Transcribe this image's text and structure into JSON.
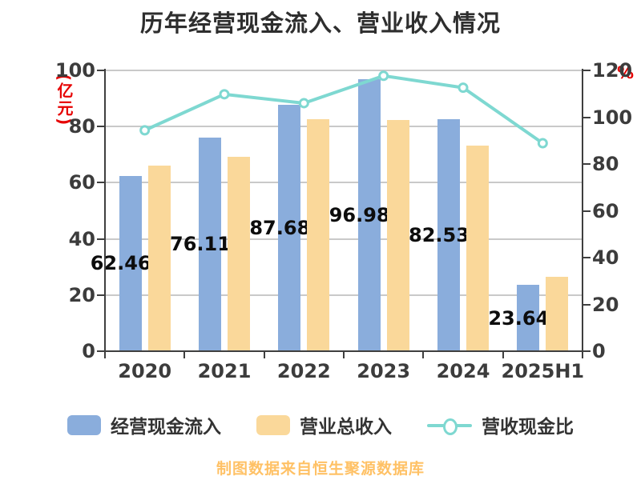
{
  "title": "历年经营现金流入、营业收入情况",
  "footer": "制图数据来自恒生聚源数据库",
  "left_axis": {
    "unit": "(亿元)",
    "ticks": [
      0,
      20,
      40,
      60,
      80,
      100
    ],
    "max": 100,
    "color": "#e60000"
  },
  "right_axis": {
    "unit": "%",
    "ticks": [
      0,
      20,
      40,
      60,
      80,
      100,
      120
    ],
    "max": 120,
    "color": "#e60000"
  },
  "legend": [
    {
      "label": "经营现金流入",
      "type": "bar",
      "color": "#8aaddc"
    },
    {
      "label": "营业总收入",
      "type": "bar",
      "color": "#fad89a"
    },
    {
      "label": "营收现金比",
      "type": "line",
      "color": "#7ed8d1"
    }
  ],
  "chart_data": {
    "type": "bar",
    "subtype": "grouped-bars-with-line",
    "title": "历年经营现金流入、营业收入情况",
    "categories": [
      "2020",
      "2021",
      "2022",
      "2023",
      "2024",
      "2025H1"
    ],
    "series": [
      {
        "name": "经营现金流入",
        "type": "bar",
        "axis": "left",
        "color": "#8aaddc",
        "values": [
          62.46,
          76.11,
          87.68,
          96.98,
          82.53,
          23.64
        ],
        "data_labels": [
          "62.46亿",
          "76.11亿",
          "87.68亿",
          "96.98亿",
          "82.53亿",
          "23.64亿"
        ]
      },
      {
        "name": "营业总收入",
        "type": "bar",
        "axis": "left",
        "color": "#fad89a",
        "values": [
          66.2,
          69.3,
          82.7,
          82.4,
          73.3,
          26.6
        ],
        "data_labels": []
      },
      {
        "name": "营收现金比",
        "type": "line",
        "axis": "right",
        "color": "#7ed8d1",
        "marker": "circle-white-fill",
        "values": [
          94.4,
          109.8,
          106.0,
          117.7,
          112.6,
          88.9
        ]
      }
    ],
    "xlabel": "",
    "ylabel_left": "(亿元)",
    "ylabel_right": "%",
    "left_ylim": [
      0,
      100
    ],
    "right_ylim": [
      0,
      120
    ],
    "grid": true,
    "gridline_color": "#c9c9c9",
    "legend_position": "bottom"
  }
}
